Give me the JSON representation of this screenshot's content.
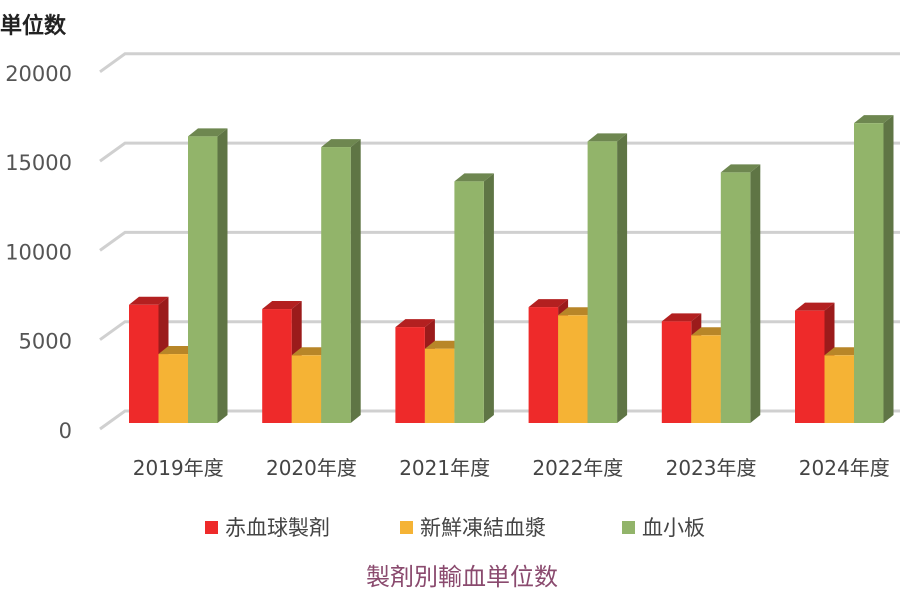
{
  "chart_data": {
    "type": "bar",
    "style": "3d-clustered-column",
    "title": "製剤別輸血単位数",
    "ylabel": "単位数",
    "ylim": [
      0,
      20000
    ],
    "yticks": [
      0,
      5000,
      10000,
      15000,
      20000
    ],
    "grid": true,
    "legend_position": "bottom",
    "categories": [
      "2019年度",
      "2020年度",
      "2021年度",
      "2022年度",
      "2023年度",
      "2024年度"
    ],
    "series": [
      {
        "name": "赤血球製剤",
        "color": "#ee2a2a",
        "values": [
          6620,
          6380,
          5370,
          6490,
          5690,
          6290
        ]
      },
      {
        "name": "新鮮凍結血漿",
        "color": "#f5b335",
        "values": [
          3860,
          3790,
          4160,
          6030,
          4910,
          3790
        ]
      },
      {
        "name": "血小板",
        "color": "#92b46a",
        "values": [
          16050,
          15450,
          13530,
          15770,
          14030,
          16790
        ]
      }
    ]
  }
}
